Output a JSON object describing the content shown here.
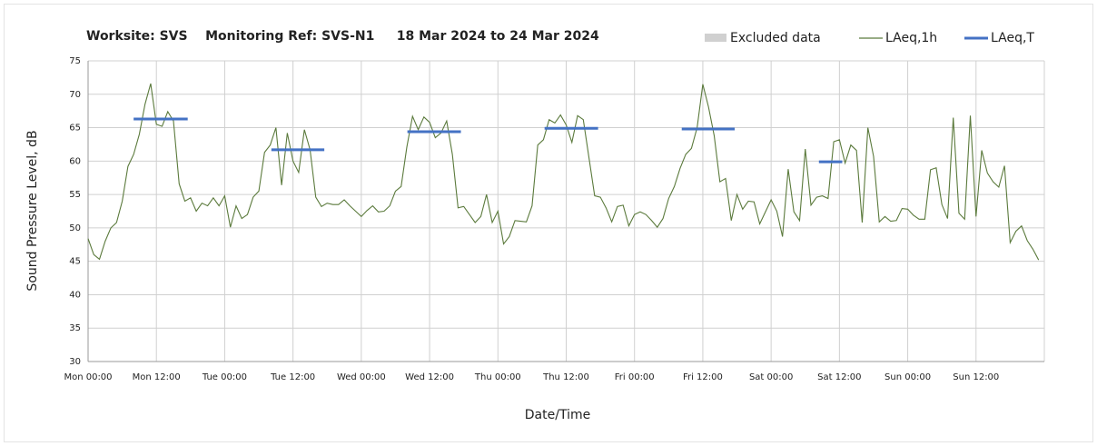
{
  "chart_data": {
    "type": "line",
    "title": "Worksite: SVS    Monitoring Ref: SVS-N1     18 Mar 2024 to 24 Mar 2024",
    "xlabel": "Date/Time",
    "ylabel": "Sound Pressure Level, dB",
    "xlim": [
      0,
      168
    ],
    "ylim": [
      30,
      75
    ],
    "yticks": [
      30,
      35,
      40,
      45,
      50,
      55,
      60,
      65,
      70,
      75
    ],
    "xticks": [
      {
        "value": 0,
        "label": "Mon 00:00"
      },
      {
        "value": 12,
        "label": "Mon 12:00"
      },
      {
        "value": 24,
        "label": "Tue 00:00"
      },
      {
        "value": 36,
        "label": "Tue 12:00"
      },
      {
        "value": 48,
        "label": "Wed 00:00"
      },
      {
        "value": 60,
        "label": "Wed 12:00"
      },
      {
        "value": 72,
        "label": "Thu 00:00"
      },
      {
        "value": 84,
        "label": "Thu 12:00"
      },
      {
        "value": 96,
        "label": "Fri 00:00"
      },
      {
        "value": 108,
        "label": "Fri 12:00"
      },
      {
        "value": 120,
        "label": "Sat 00:00"
      },
      {
        "value": 132,
        "label": "Sat 12:00"
      },
      {
        "value": 144,
        "label": "Sun 00:00"
      },
      {
        "value": 156,
        "label": "Sun 12:00"
      }
    ],
    "grid": true,
    "legend_entries": [
      {
        "name": "Excluded data",
        "color": "#d0d0d0"
      }
    ],
    "series": [
      {
        "name": "LAeq,1h",
        "color": "#5b7a3c",
        "x": [
          0,
          1,
          2,
          3,
          4,
          5,
          6,
          7,
          8,
          9,
          10,
          11,
          12,
          13,
          14,
          15,
          16,
          17,
          18,
          19,
          20,
          21,
          22,
          23,
          24,
          25,
          26,
          27,
          28,
          29,
          30,
          31,
          32,
          33,
          34,
          35,
          36,
          37,
          38,
          39,
          40,
          41,
          42,
          43,
          44,
          45,
          46,
          47,
          48,
          49,
          50,
          51,
          52,
          53,
          54,
          55,
          56,
          57,
          58,
          59,
          60,
          61,
          62,
          63,
          64,
          65,
          66,
          67,
          68,
          69,
          70,
          71,
          72,
          73,
          74,
          75,
          76,
          77,
          78,
          79,
          80,
          81,
          82,
          83,
          84,
          85,
          86,
          87,
          88,
          89,
          90,
          91,
          92,
          93,
          94,
          95,
          96,
          97,
          98,
          99,
          100,
          101,
          102,
          103,
          104,
          105,
          106,
          107,
          108,
          109,
          110,
          111,
          112,
          113,
          114,
          115,
          116,
          117,
          118,
          119,
          120,
          121,
          122,
          123,
          124,
          125,
          126,
          127,
          128,
          129,
          130,
          131,
          132,
          133,
          134,
          135,
          136,
          137,
          138,
          139,
          140,
          141,
          142,
          143,
          144,
          145,
          146,
          147,
          148,
          149,
          150,
          151,
          152,
          153,
          154,
          155,
          156,
          157,
          158,
          159,
          160,
          161,
          162,
          163,
          164,
          165,
          166,
          167
        ],
        "values": [
          48.4,
          46,
          45.3,
          48,
          50,
          50.8,
          54,
          59.2,
          61,
          64,
          68.5,
          71.6,
          65.5,
          65.2,
          67.4,
          66,
          56.6,
          54,
          54.5,
          52.5,
          53.7,
          53.3,
          54.5,
          53.3,
          54.8,
          50.1,
          53.3,
          51.4,
          52,
          54.6,
          55.5,
          61.3,
          62.4,
          65,
          56.4,
          64.2,
          60,
          58.3,
          64.7,
          61.7,
          54.6,
          53.2,
          53.7,
          53.5,
          53.5,
          54.2,
          53.3,
          52.5,
          51.7,
          52.6,
          53.3,
          52.4,
          52.5,
          53.3,
          55.5,
          56.2,
          62.1,
          66.7,
          64.7,
          66.6,
          65.8,
          63.5,
          64.2,
          66,
          61,
          53,
          53.2,
          52,
          50.8,
          51.7,
          55,
          50.8,
          52.5,
          47.6,
          48.7,
          51.1,
          51,
          50.9,
          53.3,
          62.4,
          63.2,
          66.2,
          65.7,
          66.9,
          65.4,
          62.8,
          66.8,
          66.2,
          60.5,
          54.8,
          54.6,
          53,
          50.9,
          53.2,
          53.4,
          50.3,
          52,
          52.4,
          52,
          51.1,
          50.1,
          51.4,
          54.4,
          56.2,
          58.9,
          61,
          61.9,
          65,
          71.5,
          68.1,
          63.8,
          56.9,
          57.4,
          51.1,
          55,
          52.8,
          54,
          53.9,
          50.6,
          52.4,
          54.2,
          52.5,
          48.7,
          58.8,
          52.4,
          51.1,
          61.8,
          53.4,
          54.6,
          54.8,
          54.4,
          62.9,
          63.2,
          59.7,
          62.4,
          61.6,
          50.8,
          65,
          60.7,
          50.9,
          51.7,
          51,
          51.1,
          52.9,
          52.8,
          51.9,
          51.3,
          51.3,
          58.7,
          59,
          53.5,
          51.4,
          66.5,
          52.2,
          51.3,
          66.8,
          51.7,
          61.6,
          58.2,
          56.9,
          56.1,
          59.3,
          47.8,
          49.5,
          50.3,
          48.1,
          46.8,
          45.2
        ]
      },
      {
        "name": "LAeq,T",
        "color": "#4472c4",
        "segments": [
          {
            "x": [
              8,
              17.5
            ],
            "value": 66.3
          },
          {
            "x": [
              32.2,
              41.5
            ],
            "value": 61.7
          },
          {
            "x": [
              56.1,
              65.5
            ],
            "value": 64.4
          },
          {
            "x": [
              80.2,
              89.6
            ],
            "value": 64.9
          },
          {
            "x": [
              104.3,
              113.6
            ],
            "value": 64.8
          },
          {
            "x": [
              128.4,
              132.5
            ],
            "value": 59.9
          }
        ]
      }
    ]
  }
}
